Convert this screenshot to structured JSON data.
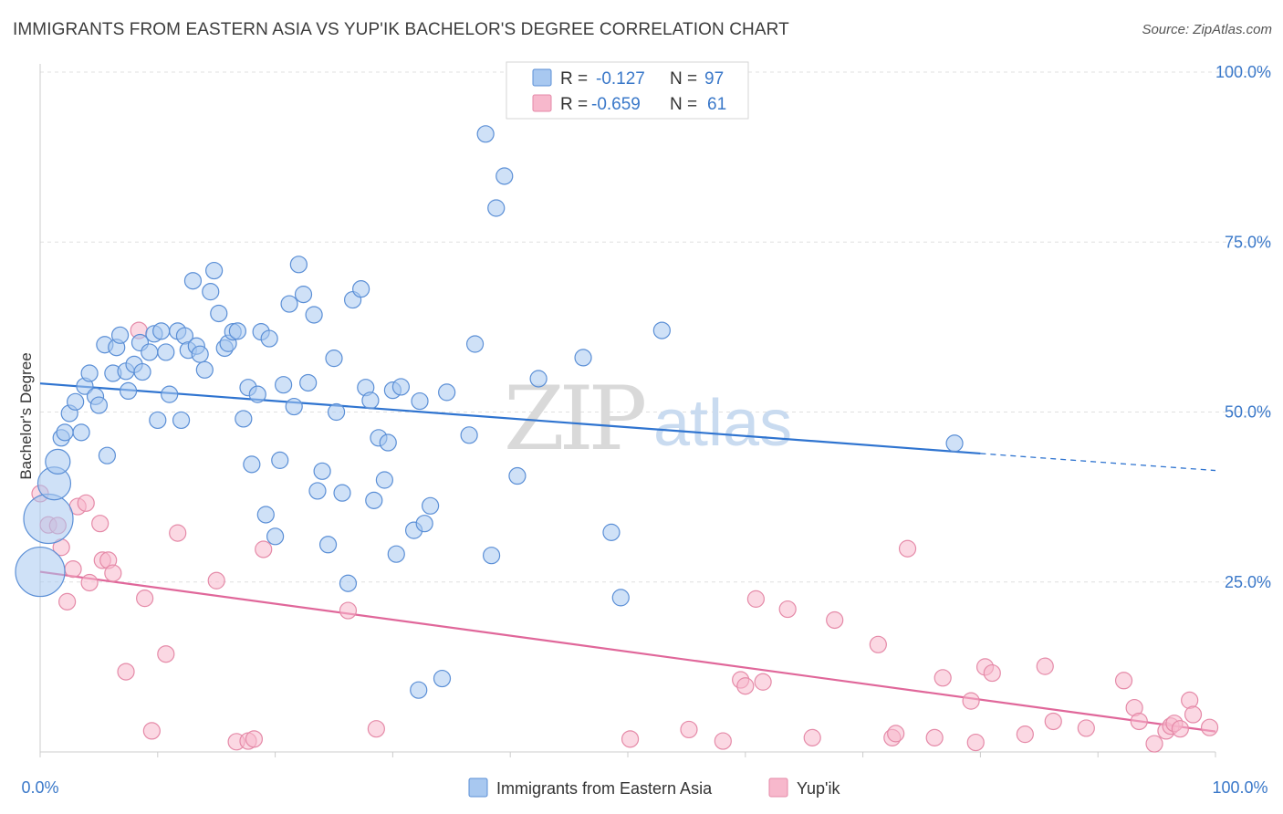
{
  "header": {
    "title": "IMMIGRANTS FROM EASTERN ASIA VS YUP'IK BACHELOR'S DEGREE CORRELATION CHART",
    "source": "Source: ZipAtlas.com"
  },
  "watermark": {
    "zip": "ZIP",
    "atlas": "atlas"
  },
  "colors": {
    "blue_fill": "#a8c8f0",
    "blue_stroke": "#5b8fd6",
    "blue_line": "#2f74d0",
    "pink_fill": "#f7b8cc",
    "pink_stroke": "#e58aa8",
    "pink_line": "#e0679a",
    "grid": "#e0e0e0",
    "tick_text": "#3a78c9"
  },
  "legend": {
    "rows": [
      {
        "r_label": "R =",
        "r_value": "-0.127",
        "n_label": "N =",
        "n_value": "97"
      },
      {
        "r_label": "R =",
        "r_value": "-0.659",
        "n_label": "N =",
        "n_value": "61"
      }
    ]
  },
  "bottom_legend": {
    "series1": "Immigrants from Eastern Asia",
    "series2": "Yup'ik"
  },
  "chart_data": {
    "type": "scatter",
    "title": "IMMIGRANTS FROM EASTERN ASIA VS YUP'IK BACHELOR'S DEGREE CORRELATION CHART",
    "xlabel": "",
    "ylabel": "Bachelor's Degree",
    "xlim": [
      0,
      100
    ],
    "ylim": [
      0,
      100
    ],
    "x_tick_labels": [
      "0.0%",
      "100.0%"
    ],
    "y_ticks": [
      25,
      50,
      75,
      100
    ],
    "y_tick_labels": [
      "25.0%",
      "50.0%",
      "75.0%",
      "100.0%"
    ],
    "legend_position": "top-center",
    "series": [
      {
        "name": "Immigrants from Eastern Asia",
        "R": -0.127,
        "N": 97,
        "trend": {
          "x0": 0,
          "y0": 54.2,
          "x1": 80,
          "y1": 43.9,
          "dash_to_x": 100,
          "dash_to_y": 41.4
        },
        "points": [
          {
            "x": 0.0,
            "y": 26.5,
            "s": 3
          },
          {
            "x": 0.7,
            "y": 34.3,
            "s": 3
          },
          {
            "x": 1.2,
            "y": 39.5,
            "s": 2
          },
          {
            "x": 1.5,
            "y": 42.7,
            "s": 1.5
          },
          {
            "x": 1.8,
            "y": 46.2,
            "s": 1
          },
          {
            "x": 2.1,
            "y": 47.0,
            "s": 1
          },
          {
            "x": 2.5,
            "y": 49.8,
            "s": 1
          },
          {
            "x": 3.0,
            "y": 51.5,
            "s": 1
          },
          {
            "x": 3.5,
            "y": 47.0,
            "s": 1
          },
          {
            "x": 3.8,
            "y": 53.8,
            "s": 1
          },
          {
            "x": 4.2,
            "y": 55.7,
            "s": 1
          },
          {
            "x": 4.7,
            "y": 52.3,
            "s": 1
          },
          {
            "x": 5.0,
            "y": 51.0,
            "s": 1
          },
          {
            "x": 5.5,
            "y": 59.9,
            "s": 1
          },
          {
            "x": 5.7,
            "y": 43.6,
            "s": 1
          },
          {
            "x": 6.2,
            "y": 55.7,
            "s": 1
          },
          {
            "x": 6.5,
            "y": 59.5,
            "s": 1
          },
          {
            "x": 6.8,
            "y": 61.3,
            "s": 1
          },
          {
            "x": 7.3,
            "y": 56.0,
            "s": 1
          },
          {
            "x": 7.5,
            "y": 53.1,
            "s": 1
          },
          {
            "x": 8.0,
            "y": 57.0,
            "s": 1
          },
          {
            "x": 8.5,
            "y": 60.2,
            "s": 1
          },
          {
            "x": 8.7,
            "y": 55.9,
            "s": 1
          },
          {
            "x": 9.3,
            "y": 58.8,
            "s": 1
          },
          {
            "x": 9.7,
            "y": 61.5,
            "s": 1
          },
          {
            "x": 10.0,
            "y": 48.8,
            "s": 1
          },
          {
            "x": 10.3,
            "y": 61.9,
            "s": 1
          },
          {
            "x": 10.7,
            "y": 58.8,
            "s": 1
          },
          {
            "x": 11.0,
            "y": 52.6,
            "s": 1
          },
          {
            "x": 11.7,
            "y": 61.9,
            "s": 1
          },
          {
            "x": 12.0,
            "y": 48.8,
            "s": 1
          },
          {
            "x": 12.3,
            "y": 61.2,
            "s": 1
          },
          {
            "x": 12.6,
            "y": 59.1,
            "s": 1
          },
          {
            "x": 13.0,
            "y": 69.3,
            "s": 1
          },
          {
            "x": 13.3,
            "y": 59.7,
            "s": 1
          },
          {
            "x": 13.6,
            "y": 58.5,
            "s": 1
          },
          {
            "x": 14.0,
            "y": 56.2,
            "s": 1
          },
          {
            "x": 14.5,
            "y": 67.7,
            "s": 1
          },
          {
            "x": 14.8,
            "y": 70.8,
            "s": 1
          },
          {
            "x": 15.2,
            "y": 64.5,
            "s": 1
          },
          {
            "x": 15.7,
            "y": 59.4,
            "s": 1
          },
          {
            "x": 16.0,
            "y": 60.1,
            "s": 1
          },
          {
            "x": 16.4,
            "y": 61.8,
            "s": 1
          },
          {
            "x": 16.8,
            "y": 61.9,
            "s": 1
          },
          {
            "x": 17.3,
            "y": 49.0,
            "s": 1
          },
          {
            "x": 17.7,
            "y": 53.6,
            "s": 1
          },
          {
            "x": 18.0,
            "y": 42.3,
            "s": 1
          },
          {
            "x": 18.5,
            "y": 52.6,
            "s": 1
          },
          {
            "x": 18.8,
            "y": 61.8,
            "s": 1
          },
          {
            "x": 19.2,
            "y": 34.9,
            "s": 1
          },
          {
            "x": 19.5,
            "y": 60.8,
            "s": 1
          },
          {
            "x": 20.0,
            "y": 31.7,
            "s": 1
          },
          {
            "x": 20.4,
            "y": 42.9,
            "s": 1
          },
          {
            "x": 20.7,
            "y": 54.0,
            "s": 1
          },
          {
            "x": 21.2,
            "y": 65.9,
            "s": 1
          },
          {
            "x": 21.6,
            "y": 50.8,
            "s": 1
          },
          {
            "x": 22.0,
            "y": 71.7,
            "s": 1
          },
          {
            "x": 22.4,
            "y": 67.3,
            "s": 1
          },
          {
            "x": 22.8,
            "y": 54.3,
            "s": 1
          },
          {
            "x": 23.3,
            "y": 64.3,
            "s": 1
          },
          {
            "x": 23.6,
            "y": 38.4,
            "s": 1
          },
          {
            "x": 24.0,
            "y": 41.3,
            "s": 1
          },
          {
            "x": 24.5,
            "y": 30.5,
            "s": 1
          },
          {
            "x": 25.0,
            "y": 57.9,
            "s": 1
          },
          {
            "x": 25.2,
            "y": 50.0,
            "s": 1
          },
          {
            "x": 25.7,
            "y": 38.1,
            "s": 1
          },
          {
            "x": 26.2,
            "y": 24.8,
            "s": 1
          },
          {
            "x": 26.6,
            "y": 66.5,
            "s": 1
          },
          {
            "x": 27.3,
            "y": 68.1,
            "s": 1
          },
          {
            "x": 27.7,
            "y": 53.6,
            "s": 1
          },
          {
            "x": 28.1,
            "y": 51.7,
            "s": 1
          },
          {
            "x": 28.4,
            "y": 37.0,
            "s": 1
          },
          {
            "x": 28.8,
            "y": 46.2,
            "s": 1
          },
          {
            "x": 29.3,
            "y": 40.0,
            "s": 1
          },
          {
            "x": 29.6,
            "y": 45.5,
            "s": 1
          },
          {
            "x": 30.0,
            "y": 53.2,
            "s": 1
          },
          {
            "x": 30.3,
            "y": 29.1,
            "s": 1
          },
          {
            "x": 30.7,
            "y": 53.7,
            "s": 1
          },
          {
            "x": 31.8,
            "y": 32.6,
            "s": 1
          },
          {
            "x": 32.3,
            "y": 51.6,
            "s": 1
          },
          {
            "x": 32.7,
            "y": 33.6,
            "s": 1
          },
          {
            "x": 33.2,
            "y": 36.2,
            "s": 1
          },
          {
            "x": 32.2,
            "y": 9.1,
            "s": 1
          },
          {
            "x": 34.2,
            "y": 10.8,
            "s": 1
          },
          {
            "x": 34.6,
            "y": 52.9,
            "s": 1
          },
          {
            "x": 36.5,
            "y": 46.6,
            "s": 1
          },
          {
            "x": 37.0,
            "y": 60.0,
            "s": 1
          },
          {
            "x": 37.9,
            "y": 90.9,
            "s": 1
          },
          {
            "x": 38.4,
            "y": 28.9,
            "s": 1
          },
          {
            "x": 38.8,
            "y": 80.0,
            "s": 1
          },
          {
            "x": 39.5,
            "y": 84.7,
            "s": 1
          },
          {
            "x": 40.6,
            "y": 40.6,
            "s": 1
          },
          {
            "x": 42.4,
            "y": 54.9,
            "s": 1
          },
          {
            "x": 46.2,
            "y": 58.0,
            "s": 1
          },
          {
            "x": 48.6,
            "y": 32.3,
            "s": 1
          },
          {
            "x": 49.4,
            "y": 22.7,
            "s": 1
          },
          {
            "x": 52.9,
            "y": 62.0,
            "s": 1
          },
          {
            "x": 77.8,
            "y": 45.4,
            "s": 1
          }
        ]
      },
      {
        "name": "Yup'ik",
        "R": -0.659,
        "N": 61,
        "trend": {
          "x0": 0,
          "y0": 26.5,
          "x1": 100,
          "y1": 3.0
        },
        "points": [
          {
            "x": 0.0,
            "y": 38.0,
            "s": 1
          },
          {
            "x": 0.7,
            "y": 33.4,
            "s": 1
          },
          {
            "x": 1.5,
            "y": 33.3,
            "s": 1
          },
          {
            "x": 1.8,
            "y": 30.1,
            "s": 1
          },
          {
            "x": 2.3,
            "y": 22.1,
            "s": 1
          },
          {
            "x": 2.8,
            "y": 26.9,
            "s": 1
          },
          {
            "x": 3.2,
            "y": 36.1,
            "s": 1
          },
          {
            "x": 3.9,
            "y": 36.6,
            "s": 1
          },
          {
            "x": 4.2,
            "y": 24.9,
            "s": 1
          },
          {
            "x": 5.1,
            "y": 33.6,
            "s": 1
          },
          {
            "x": 5.3,
            "y": 28.2,
            "s": 1
          },
          {
            "x": 5.8,
            "y": 28.2,
            "s": 1
          },
          {
            "x": 6.2,
            "y": 26.3,
            "s": 1
          },
          {
            "x": 7.3,
            "y": 11.8,
            "s": 1
          },
          {
            "x": 8.4,
            "y": 62.0,
            "s": 1
          },
          {
            "x": 8.9,
            "y": 22.6,
            "s": 1
          },
          {
            "x": 9.5,
            "y": 3.1,
            "s": 1
          },
          {
            "x": 10.7,
            "y": 14.4,
            "s": 1
          },
          {
            "x": 11.7,
            "y": 32.2,
            "s": 1
          },
          {
            "x": 15.0,
            "y": 25.2,
            "s": 1
          },
          {
            "x": 16.7,
            "y": 1.5,
            "s": 1
          },
          {
            "x": 17.7,
            "y": 1.6,
            "s": 1
          },
          {
            "x": 18.2,
            "y": 1.9,
            "s": 1
          },
          {
            "x": 19.0,
            "y": 29.8,
            "s": 1
          },
          {
            "x": 26.2,
            "y": 20.8,
            "s": 1
          },
          {
            "x": 28.6,
            "y": 3.4,
            "s": 1
          },
          {
            "x": 50.2,
            "y": 1.9,
            "s": 1
          },
          {
            "x": 55.2,
            "y": 3.3,
            "s": 1
          },
          {
            "x": 58.1,
            "y": 1.6,
            "s": 1
          },
          {
            "x": 59.6,
            "y": 10.6,
            "s": 1
          },
          {
            "x": 60.0,
            "y": 9.7,
            "s": 1
          },
          {
            "x": 60.9,
            "y": 22.5,
            "s": 1
          },
          {
            "x": 61.5,
            "y": 10.3,
            "s": 1
          },
          {
            "x": 63.6,
            "y": 21.0,
            "s": 1
          },
          {
            "x": 65.7,
            "y": 2.1,
            "s": 1
          },
          {
            "x": 67.6,
            "y": 19.4,
            "s": 1
          },
          {
            "x": 71.3,
            "y": 15.8,
            "s": 1
          },
          {
            "x": 72.5,
            "y": 2.1,
            "s": 1
          },
          {
            "x": 72.8,
            "y": 2.7,
            "s": 1
          },
          {
            "x": 73.8,
            "y": 29.9,
            "s": 1
          },
          {
            "x": 76.1,
            "y": 2.1,
            "s": 1
          },
          {
            "x": 76.8,
            "y": 10.9,
            "s": 1
          },
          {
            "x": 79.2,
            "y": 7.5,
            "s": 1
          },
          {
            "x": 79.6,
            "y": 1.4,
            "s": 1
          },
          {
            "x": 80.4,
            "y": 12.5,
            "s": 1
          },
          {
            "x": 81.0,
            "y": 11.6,
            "s": 1
          },
          {
            "x": 83.8,
            "y": 2.6,
            "s": 1
          },
          {
            "x": 85.5,
            "y": 12.6,
            "s": 1
          },
          {
            "x": 86.2,
            "y": 4.5,
            "s": 1
          },
          {
            "x": 89.0,
            "y": 3.5,
            "s": 1
          },
          {
            "x": 92.2,
            "y": 10.5,
            "s": 1
          },
          {
            "x": 93.1,
            "y": 6.5,
            "s": 1
          },
          {
            "x": 93.5,
            "y": 4.5,
            "s": 1
          },
          {
            "x": 94.8,
            "y": 1.2,
            "s": 1
          },
          {
            "x": 95.8,
            "y": 3.1,
            "s": 1
          },
          {
            "x": 96.2,
            "y": 3.8,
            "s": 1
          },
          {
            "x": 96.5,
            "y": 4.2,
            "s": 1
          },
          {
            "x": 97.0,
            "y": 3.4,
            "s": 1
          },
          {
            "x": 97.8,
            "y": 7.6,
            "s": 1
          },
          {
            "x": 98.1,
            "y": 5.5,
            "s": 1
          },
          {
            "x": 99.5,
            "y": 3.6,
            "s": 1
          }
        ]
      }
    ]
  }
}
